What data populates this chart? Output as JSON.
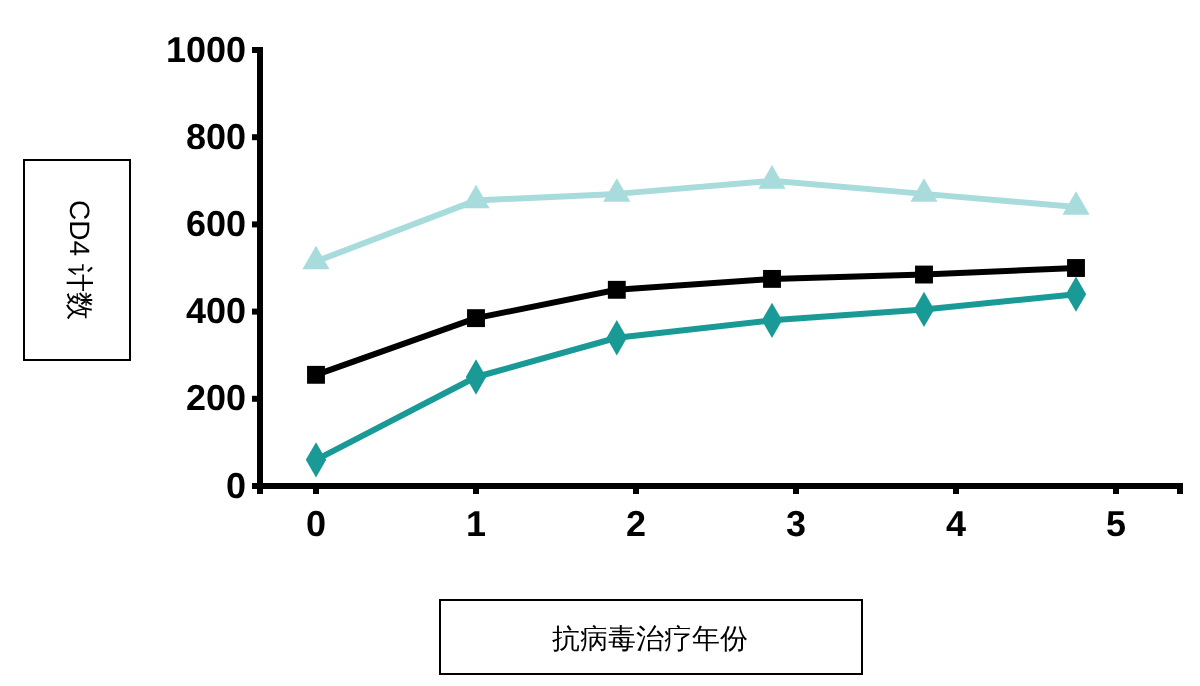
{
  "chart_data": {
    "type": "line",
    "xlabel": "抗病毒治疗年份",
    "ylabel": "CD4 计数",
    "xlim": [
      -0.35,
      5.4
    ],
    "xticks": [
      0,
      1,
      2,
      3,
      4,
      5
    ],
    "ylim": [
      0,
      1000
    ],
    "yticks": [
      0,
      200,
      400,
      600,
      800,
      1000
    ],
    "grid": false,
    "line_style": "solid",
    "series": [
      {
        "color": "#a8dcdc",
        "marker": "triangle",
        "x": [
          0,
          1,
          1.88,
          2.85,
          3.8,
          4.75
        ],
        "values": [
          515,
          655,
          670,
          700,
          670,
          640
        ]
      },
      {
        "color": "#000000",
        "marker": "square",
        "x": [
          0,
          1,
          1.88,
          2.85,
          3.8,
          4.75
        ],
        "values": [
          255,
          385,
          450,
          475,
          485,
          500
        ]
      },
      {
        "color": "#1a9a96",
        "marker": "diamond",
        "x": [
          0,
          1,
          1.88,
          2.85,
          3.8,
          4.75
        ],
        "values": [
          60,
          250,
          340,
          380,
          405,
          440
        ]
      }
    ]
  }
}
